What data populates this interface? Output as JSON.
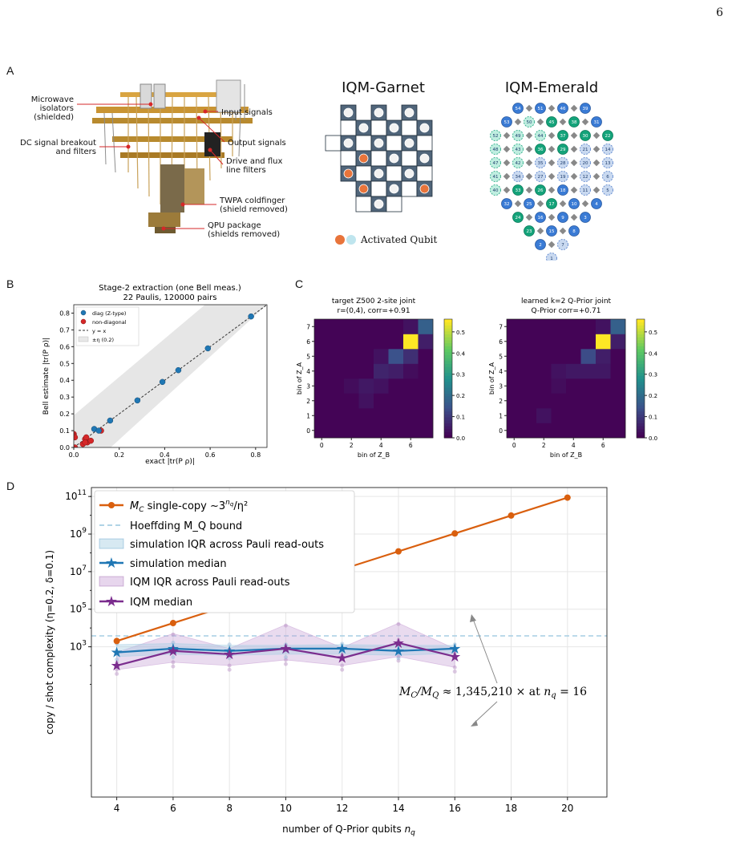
{
  "page_number": "6",
  "panels": {
    "A": "A",
    "B": "B",
    "C": "C",
    "D": "D"
  },
  "fridge": {
    "callouts": [
      "Microwave",
      "isolators",
      "(shielded)",
      "DC signal breakout",
      "and filters",
      "Input signals",
      "Output signals",
      "Drive and flux",
      "line filters",
      "TWPA coldfinger",
      "(shield removed)",
      "QPU package",
      "(shields removed)"
    ]
  },
  "garnet": {
    "title": "IQM-Garnet",
    "legend": "Activated Qubit",
    "colors": {
      "active": "#e8743b",
      "passive": "#bfe5ee",
      "tile": "#50657a"
    }
  },
  "emerald": {
    "title": "IQM-Emerald",
    "labels": [
      "54",
      "51",
      "46",
      "39",
      "53",
      "50",
      "45",
      "38",
      "31",
      "52",
      "49",
      "44",
      "37",
      "30",
      "22",
      "48",
      "43",
      "36",
      "29",
      "21",
      "14",
      "47",
      "42",
      "35",
      "28",
      "20",
      "13",
      "41",
      "34",
      "27",
      "19",
      "12",
      "6",
      "40",
      "33",
      "26",
      "18",
      "11",
      "5",
      "32",
      "25",
      "17",
      "10",
      "4",
      "24",
      "16",
      "9",
      "3",
      "23",
      "15",
      "8",
      "2",
      "7",
      "1"
    ]
  },
  "panelB": {
    "title1": "Stage-2 extraction (one Bell meas.)",
    "title2": "22 Paulis, 120000 pairs",
    "xlabel": "exact |tr(P ρ)|",
    "ylabel": "Bell estimate |tr(P ρ)|",
    "xticks": [
      "0.0",
      "0.2",
      "0.4",
      "0.6",
      "0.8"
    ],
    "yticks": [
      "0.0",
      "0.1",
      "0.2",
      "0.3",
      "0.4",
      "0.5",
      "0.6",
      "0.7",
      "0.8"
    ],
    "legend": [
      "diag (Z-type)",
      "non-diagonal",
      "y = x",
      "±η (0.2)"
    ]
  },
  "panelC": {
    "left": {
      "title1": "target Z500 2-site joint",
      "title2": "r=(0,4), corr=+0.91"
    },
    "right": {
      "title1": "learned k=2 Q-Prior joint",
      "title2": "Q-Prior corr=+0.71"
    },
    "xlabel": "bin of Z_B",
    "ylabel": "bin of Z_A",
    "xticks": [
      "0",
      "2",
      "4",
      "6"
    ],
    "yticks": [
      "0",
      "1",
      "2",
      "3",
      "4",
      "5",
      "6",
      "7"
    ],
    "cbar_ticks": [
      "0.0",
      "0.1",
      "0.2",
      "0.3",
      "0.4",
      "0.5"
    ]
  },
  "chart_data": {
    "type": "line",
    "xlabel": "number of Q-Prior qubits  n_q",
    "ylabel": "copy / shot complexity  (η=0.2, δ=0.1)",
    "xticks": [
      "4",
      "6",
      "8",
      "10",
      "12",
      "14",
      "16",
      "18",
      "20"
    ],
    "yscale": "log",
    "ylim": [
      1e-05,
      300000000000
    ],
    "yticks": [
      "10^3",
      "10^5",
      "10^7",
      "10^9",
      "10^11"
    ],
    "annotation": "M_C/M_Q ≈ 1,345,210 ×  at  n_q = 16",
    "legend": [
      "M_C single-copy  ~3^n_q/η²",
      "Hoeffding M_Q bound",
      "simulation IQR across Pauli read-outs",
      "simulation median",
      "IQM IQR across Pauli read-outs",
      "IQM median"
    ],
    "x": [
      4,
      6,
      8,
      10,
      12,
      14,
      16,
      18,
      20
    ],
    "mc": [
      2025,
      18225,
      164025,
      1476225,
      13286025,
      119574225,
      1076168025,
      9685512225,
      87169610025
    ],
    "mq_bound": 3800,
    "sim_x": [
      4,
      6,
      8,
      10,
      12,
      14,
      16
    ],
    "sim_median": [
      500,
      800,
      600,
      800,
      800,
      600,
      800
    ],
    "sim_q1": [
      300,
      400,
      350,
      400,
      400,
      350,
      450
    ],
    "sim_q3": [
      1300,
      1500,
      1200,
      1200,
      1300,
      1200,
      1200
    ],
    "iqm_median": [
      100,
      600,
      400,
      800,
      250,
      1600,
      300
    ],
    "iqm_q1": [
      60,
      150,
      100,
      200,
      100,
      300,
      80
    ],
    "iqm_q3": [
      500,
      5000,
      800,
      15000,
      900,
      18000,
      800
    ],
    "colors": {
      "mc": "#d95f0e",
      "mq": "#a6cee3",
      "sim": "#1f77b4",
      "iqm": "#7b2d8e"
    }
  }
}
